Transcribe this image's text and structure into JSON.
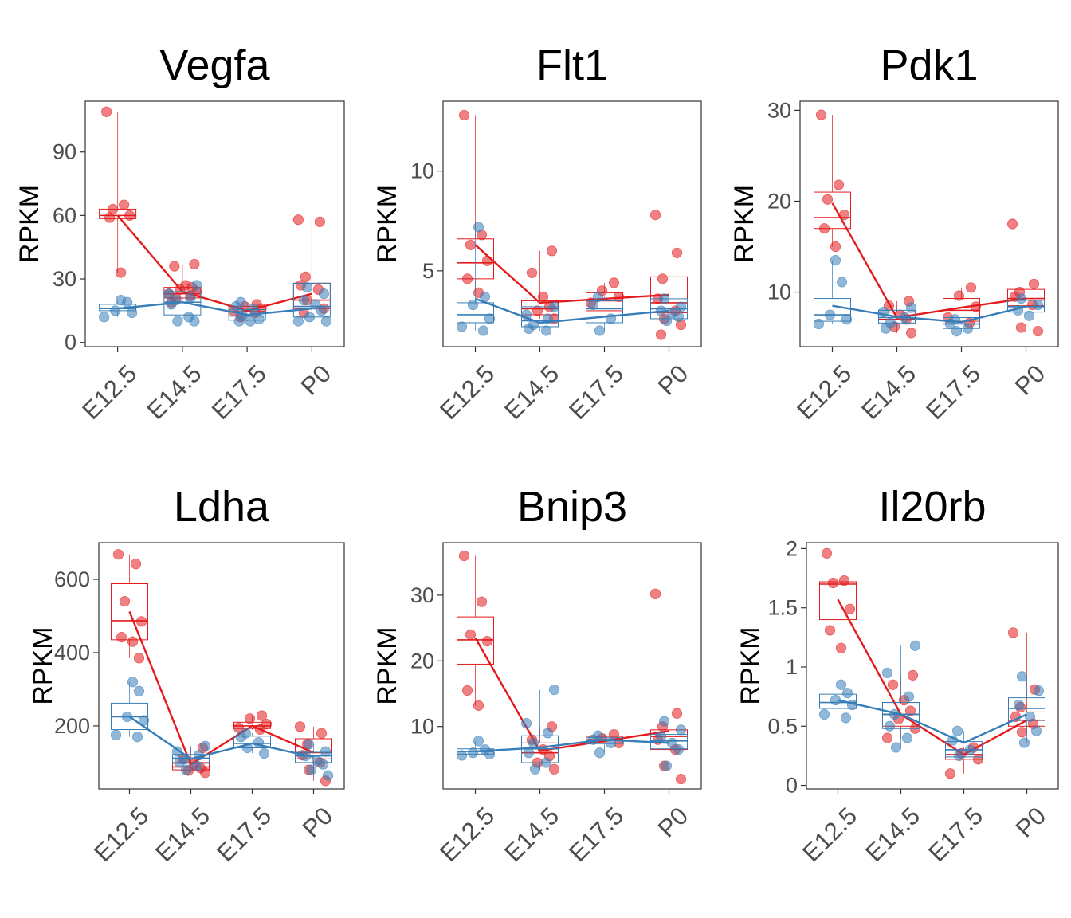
{
  "chart_data": [
    {
      "type": "box",
      "title": "Vegfa",
      "ylabel": "RPKM",
      "categories": [
        "E12.5",
        "E14.5",
        "E17.5",
        "P0"
      ],
      "ylim": [
        -2,
        114
      ],
      "yticks": [
        0,
        30,
        60,
        90
      ],
      "series": [
        {
          "color": "#E41A1C",
          "boxes": [
            {
              "q1": 58.5,
              "median": 60,
              "q3": 63
            },
            {
              "q1": 21,
              "median": 23,
              "q3": 26
            },
            {
              "q1": 12.5,
              "median": 14.5,
              "q3": 17
            },
            {
              "q1": 16,
              "median": 20,
              "q3": 28
            }
          ],
          "means": [
            60,
            24,
            15,
            23
          ],
          "points": [
            [
              109,
              65,
              63,
              60,
              59,
              33
            ],
            [
              37,
              36,
              27,
              26,
              25,
              24,
              23,
              22,
              21,
              19
            ],
            [
              18,
              17,
              16,
              15,
              14,
              12
            ],
            [
              58,
              57,
              31,
              27,
              25,
              20,
              16,
              14
            ]
          ]
        },
        {
          "color": "#377EB8",
          "boxes": [
            {
              "q1": 15,
              "median": 16,
              "q3": 18
            },
            {
              "q1": 13,
              "median": 19,
              "q3": 24
            },
            {
              "q1": 10.5,
              "median": 12.5,
              "q3": 15.5
            },
            {
              "q1": 12,
              "median": 17,
              "q3": 28
            }
          ],
          "means": [
            16,
            19,
            13,
            16
          ],
          "points": [
            [
              20,
              19,
              15,
              14,
              12
            ],
            [
              27,
              23,
              21,
              20,
              18,
              12,
              10,
              10
            ],
            [
              19,
              17,
              16,
              13,
              11,
              10,
              10
            ],
            [
              26,
              23,
              20,
              18,
              15,
              12,
              10,
              10
            ]
          ]
        }
      ]
    },
    {
      "type": "box",
      "title": "Flt1",
      "ylabel": "RPKM",
      "categories": [
        "E12.5",
        "E14.5",
        "E17.5",
        "P0"
      ],
      "ylim": [
        1.2,
        13.5
      ],
      "yticks": [
        5,
        10
      ],
      "series": [
        {
          "color": "#E41A1C",
          "boxes": [
            {
              "q1": 4.6,
              "median": 5.4,
              "q3": 6.6
            },
            {
              "q1": 2.8,
              "median": 3.1,
              "q3": 3.5
            },
            {
              "q1": 3.0,
              "median": 3.5,
              "q3": 3.9
            },
            {
              "q1": 2.9,
              "median": 3.4,
              "q3": 4.7
            }
          ],
          "means": [
            6.3,
            3.4,
            3.6,
            3.8
          ],
          "points": [
            [
              12.8,
              6.8,
              6.3,
              5.5,
              4.6,
              3.9
            ],
            [
              6.0,
              4.9,
              3.7,
              3.2,
              3.0,
              2.6
            ],
            [
              4.4,
              4.0,
              3.7,
              3.4
            ],
            [
              7.8,
              5.9,
              4.6,
              3.6,
              3.0,
              2.6,
              2.3,
              1.8
            ]
          ]
        },
        {
          "color": "#377EB8",
          "boxes": [
            {
              "q1": 2.4,
              "median": 2.8,
              "q3": 3.4
            },
            {
              "q1": 2.2,
              "median": 2.5,
              "q3": 3.2
            },
            {
              "q1": 2.4,
              "median": 3.1,
              "q3": 3.5
            },
            {
              "q1": 2.6,
              "median": 3.1,
              "q3": 3.6
            }
          ],
          "means": [
            3.6,
            2.4,
            2.7,
            3.0
          ],
          "points": [
            [
              7.2,
              3.7,
              3.3,
              2.6,
              2.2,
              2.0
            ],
            [
              3.2,
              2.8,
              2.6,
              2.3,
              2.1,
              2.0
            ],
            [
              3.7,
              3.3,
              2.6,
              2.0
            ],
            [
              3.6,
              3.2,
              3.0,
              2.9,
              2.7,
              2.5
            ]
          ]
        }
      ]
    },
    {
      "type": "box",
      "title": "Pdk1",
      "ylabel": "RPKM",
      "categories": [
        "E12.5",
        "E14.5",
        "E17.5",
        "P0"
      ],
      "ylim": [
        4,
        31
      ],
      "yticks": [
        10,
        20,
        30
      ],
      "series": [
        {
          "color": "#E41A1C",
          "boxes": [
            {
              "q1": 17,
              "median": 18.2,
              "q3": 21
            },
            {
              "q1": 6.5,
              "median": 7,
              "q3": 7.8
            },
            {
              "q1": 6.8,
              "median": 8,
              "q3": 9.3
            },
            {
              "q1": 8.5,
              "median": 9.3,
              "q3": 10.3
            }
          ],
          "means": [
            19.8,
            7.2,
            8.3,
            9.3
          ],
          "points": [
            [
              29.5,
              21.8,
              20.2,
              18.5,
              17,
              15
            ],
            [
              9,
              8.5,
              7.5,
              7,
              6.2,
              5.5
            ],
            [
              10.5,
              9.6,
              8.4,
              7.2,
              6.6
            ],
            [
              17.5,
              10.9,
              10,
              9.5,
              8.6,
              6.1,
              5.7
            ]
          ]
        },
        {
          "color": "#377EB8",
          "boxes": [
            {
              "q1": 6.8,
              "median": 7.5,
              "q3": 9.3
            },
            {
              "q1": 6.6,
              "median": 7.2,
              "q3": 8.0
            },
            {
              "q1": 6.0,
              "median": 6.5,
              "q3": 7.2
            },
            {
              "q1": 7.8,
              "median": 8.4,
              "q3": 9.1
            }
          ],
          "means": [
            8.5,
            7.3,
            6.7,
            8.4
          ],
          "points": [
            [
              13.5,
              11.1,
              7.5,
              7.0,
              6.5
            ],
            [
              8.3,
              7.8,
              7.2,
              6.6,
              6.0
            ],
            [
              7.0,
              6.5,
              6.0,
              5.7
            ],
            [
              9.3,
              8.6,
              8.0,
              7.4
            ]
          ]
        }
      ]
    },
    {
      "type": "box",
      "title": "Ldha",
      "ylabel": "RPKM",
      "categories": [
        "E12.5",
        "E14.5",
        "E17.5",
        "P0"
      ],
      "ylim": [
        28,
        700
      ],
      "yticks": [
        200,
        400,
        600
      ],
      "series": [
        {
          "color": "#E41A1C",
          "boxes": [
            {
              "q1": 435,
              "median": 487,
              "q3": 588
            },
            {
              "q1": 80,
              "median": 88,
              "q3": 100
            },
            {
              "q1": 193,
              "median": 200,
              "q3": 210
            },
            {
              "q1": 110,
              "median": 127,
              "q3": 165
            }
          ],
          "means": [
            512,
            95,
            200,
            127
          ],
          "points": [
            [
              668,
              642,
              540,
              485,
              442,
              430,
              385
            ],
            [
              140,
              110,
              95,
              85,
              78,
              72
            ],
            [
              228,
              220,
              205,
              195,
              190
            ],
            [
              198,
              180,
              150,
              120,
              100,
              80,
              50
            ]
          ]
        },
        {
          "color": "#377EB8",
          "boxes": [
            {
              "q1": 190,
              "median": 225,
              "q3": 262
            },
            {
              "q1": 98,
              "median": 112,
              "q3": 122
            },
            {
              "q1": 140,
              "median": 152,
              "q3": 172
            },
            {
              "q1": 100,
              "median": 118,
              "q3": 128
            }
          ],
          "means": [
            225,
            110,
            152,
            115
          ],
          "points": [
            [
              320,
              295,
              225,
              215,
              175,
              170
            ],
            [
              145,
              130,
              120,
              110,
              100,
              90,
              80
            ],
            [
              180,
              170,
              155,
              140,
              125
            ],
            [
              150,
              130,
              118,
              105,
              95,
              80,
              65
            ]
          ]
        }
      ]
    },
    {
      "type": "box",
      "title": "Bnip3",
      "ylabel": "RPKM",
      "categories": [
        "E12.5",
        "E14.5",
        "E17.5",
        "P0"
      ],
      "ylim": [
        0.5,
        38
      ],
      "yticks": [
        10,
        20,
        30
      ],
      "series": [
        {
          "color": "#E41A1C",
          "boxes": [
            {
              "q1": 19.5,
              "median": 23.2,
              "q3": 26.7
            },
            {
              "q1": 4.5,
              "median": 6,
              "q3": 7.5
            },
            {
              "q1": 7.5,
              "median": 8,
              "q3": 8.5
            },
            {
              "q1": 6.5,
              "median": 8.5,
              "q3": 9.5
            }
          ],
          "means": [
            23.5,
            6.3,
            7.8,
            9.3
          ],
          "points": [
            [
              36,
              29,
              24,
              23,
              15.5,
              13.2
            ],
            [
              10,
              8,
              6.5,
              5.5,
              4.5,
              3.5
            ],
            [
              8.8,
              8.2,
              7.5
            ],
            [
              30.2,
              12,
              10,
              8,
              6.5,
              4,
              2
            ]
          ]
        },
        {
          "color": "#377EB8",
          "boxes": [
            {
              "q1": 5.8,
              "median": 6.2,
              "q3": 6.6
            },
            {
              "q1": 4.5,
              "median": 6.6,
              "q3": 8.6
            },
            {
              "q1": 7.4,
              "median": 7.9,
              "q3": 8.3
            },
            {
              "q1": 6.6,
              "median": 7.8,
              "q3": 8.8
            }
          ],
          "means": [
            6.2,
            6.8,
            8.0,
            7.5
          ],
          "points": [
            [
              7.8,
              6.5,
              6.0,
              5.8,
              5.6
            ],
            [
              15.6,
              10.5,
              9,
              7.5,
              6,
              4.5,
              3.5
            ],
            [
              8.6,
              8.0,
              7.5,
              6.0
            ],
            [
              10.8,
              9.5,
              8.5,
              7.5,
              6.5,
              4.0
            ]
          ]
        }
      ]
    },
    {
      "type": "box",
      "title": "Il20rb",
      "ylabel": "RPKM",
      "categories": [
        "E12.5",
        "E14.5",
        "E17.5",
        "P0"
      ],
      "ylim": [
        -0.03,
        2.05
      ],
      "yticks": [
        0.0,
        0.5,
        1.0,
        1.5,
        2.0
      ],
      "series": [
        {
          "color": "#E41A1C",
          "boxes": [
            {
              "q1": 1.4,
              "median": 1.7,
              "q3": 1.72
            },
            {
              "q1": 0.5,
              "median": 0.6,
              "q3": 0.7
            },
            {
              "q1": 0.22,
              "median": 0.26,
              "q3": 0.3
            },
            {
              "q1": 0.5,
              "median": 0.55,
              "q3": 0.62
            }
          ],
          "means": [
            1.57,
            0.6,
            0.26,
            0.55
          ],
          "points": [
            [
              1.96,
              1.73,
              1.71,
              1.49,
              1.31,
              1.16
            ],
            [
              0.93,
              0.85,
              0.72,
              0.63,
              0.56,
              0.48,
              0.4
            ],
            [
              0.32,
              0.27,
              0.22,
              0.1
            ],
            [
              1.29,
              0.81,
              0.66,
              0.58,
              0.52,
              0.45
            ]
          ]
        },
        {
          "color": "#377EB8",
          "boxes": [
            {
              "q1": 0.65,
              "median": 0.7,
              "q3": 0.77
            },
            {
              "q1": 0.48,
              "median": 0.6,
              "q3": 0.7
            },
            {
              "q1": 0.24,
              "median": 0.3,
              "q3": 0.37
            },
            {
              "q1": 0.55,
              "median": 0.65,
              "q3": 0.74
            }
          ],
          "means": [
            0.72,
            0.6,
            0.36,
            0.6
          ],
          "points": [
            [
              0.85,
              0.78,
              0.72,
              0.68,
              0.6,
              0.57
            ],
            [
              1.18,
              0.95,
              0.75,
              0.6,
              0.5,
              0.4,
              0.32
            ],
            [
              0.46,
              0.38,
              0.3,
              0.25
            ],
            [
              0.92,
              0.8,
              0.68,
              0.58,
              0.46,
              0.36
            ]
          ]
        }
      ]
    }
  ]
}
